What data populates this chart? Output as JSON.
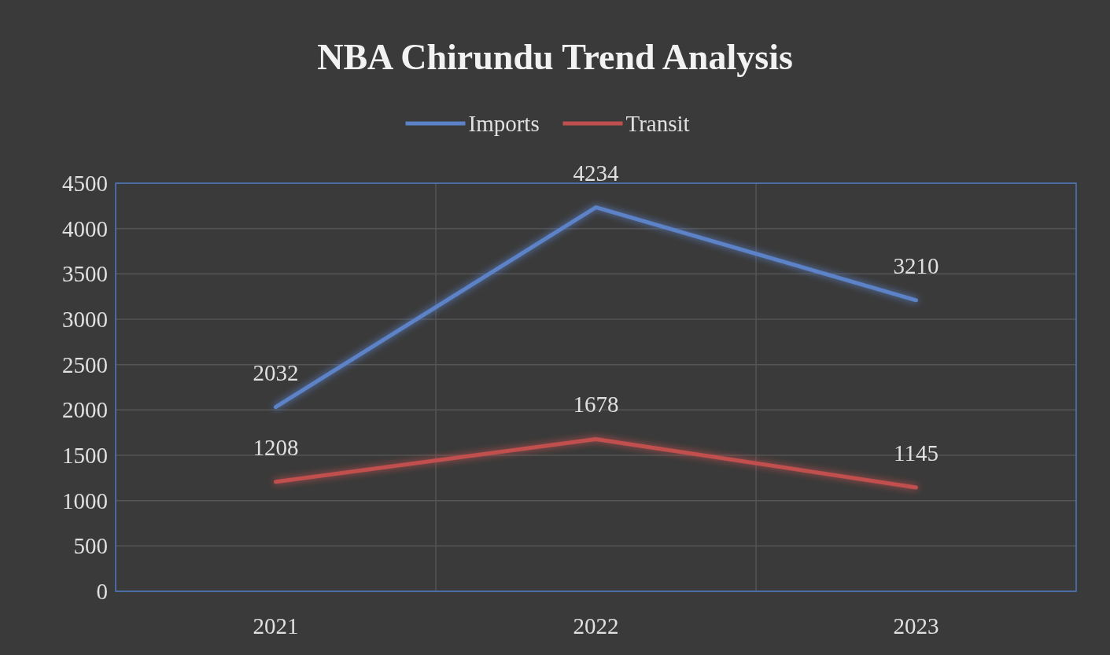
{
  "chart_data": {
    "type": "line",
    "title": "NBA Chirundu Trend Analysis",
    "categories": [
      "2021",
      "2022",
      "2023"
    ],
    "series": [
      {
        "name": "Imports",
        "color": "#5b82c8",
        "values": [
          2032,
          4234,
          3210
        ]
      },
      {
        "name": "Transit",
        "color": "#c0504d",
        "values": [
          1208,
          1678,
          1145
        ]
      }
    ],
    "ylim": [
      0,
      4500
    ],
    "yticks": [
      0,
      500,
      1000,
      1500,
      2000,
      2500,
      3000,
      3500,
      4000,
      4500
    ],
    "grid": true,
    "legend": "top",
    "data_labels": true,
    "marker": "none",
    "line_style": "solid"
  }
}
